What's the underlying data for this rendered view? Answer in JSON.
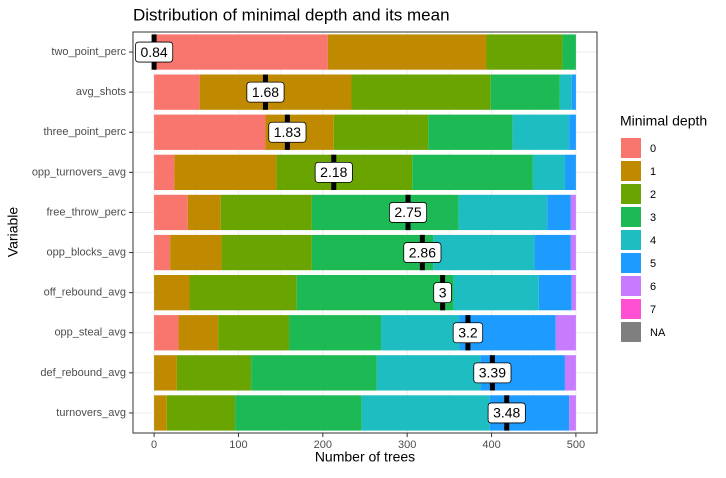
{
  "chart_data": {
    "type": "stacked_bar_horizontal",
    "title": "Distribution of minimal depth and its mean",
    "x_label": "Number of trees",
    "y_label": "Variable",
    "legend_title": "Minimal depth",
    "legend_position": "right",
    "grid": true,
    "categories": [
      "two_point_perc",
      "avg_shots",
      "three_point_perc",
      "opp_turnovers_avg",
      "free_throw_perc",
      "opp_blocks_avg",
      "off_rebound_avg",
      "opp_steal_avg",
      "def_rebound_avg",
      "turnovers_avg"
    ],
    "series": [
      {
        "name": "0",
        "color": "#F8766D",
        "values": [
          206,
          54,
          132,
          24,
          40,
          19,
          0,
          29,
          0,
          0
        ]
      },
      {
        "name": "1",
        "color": "#C08A00",
        "values": [
          188,
          180,
          81,
          121,
          39,
          61,
          42,
          47,
          27,
          15
        ]
      },
      {
        "name": "2",
        "color": "#6AA400",
        "values": [
          90,
          165,
          112,
          161,
          108,
          107,
          127,
          84,
          88,
          81
        ]
      },
      {
        "name": "3",
        "color": "#1DB954",
        "values": [
          16,
          82,
          100,
          143,
          174,
          144,
          186,
          109,
          149,
          150
        ]
      },
      {
        "name": "4",
        "color": "#1EBDC2",
        "values": [
          0,
          14,
          67,
          38,
          105,
          120,
          101,
          93,
          123,
          152
        ]
      },
      {
        "name": "5",
        "color": "#1E9BFF",
        "values": [
          0,
          5,
          8,
          13,
          28,
          43,
          39,
          114,
          100,
          94
        ]
      },
      {
        "name": "6",
        "color": "#C77CFF",
        "values": [
          0,
          0,
          0,
          0,
          6,
          6,
          5,
          24,
          13,
          8
        ]
      },
      {
        "name": "7",
        "color": "#FF4FD2",
        "values": [
          0,
          0,
          0,
          0,
          0,
          0,
          0,
          0,
          0,
          0
        ]
      },
      {
        "name": "NA",
        "color": "#7F7F7F",
        "values": [
          0,
          0,
          0,
          0,
          0,
          0,
          0,
          0,
          0,
          0
        ]
      }
    ],
    "means": [
      0.84,
      1.68,
      1.83,
      2.18,
      2.75,
      2.86,
      3,
      3.2,
      3.39,
      3.48
    ],
    "mean_x": [
      0,
      132,
      158,
      213,
      301,
      318,
      342,
      372,
      401,
      418
    ],
    "xlim": [
      -25,
      525
    ],
    "xticks": [
      0,
      100,
      200,
      300,
      400,
      500
    ]
  }
}
